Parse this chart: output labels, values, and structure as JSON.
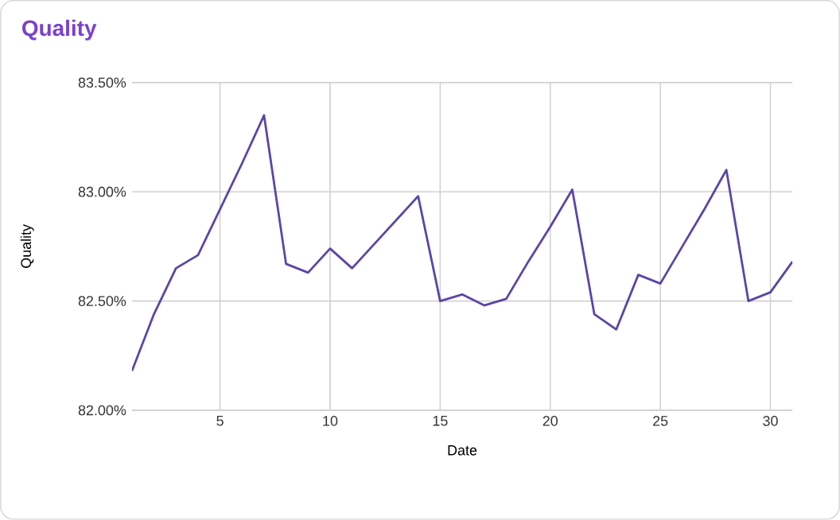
{
  "chart_data": {
    "type": "line",
    "title": "Quality",
    "xlabel": "Date",
    "ylabel": "Quality",
    "x": [
      1,
      2,
      3,
      4,
      5,
      6,
      7,
      8,
      9,
      10,
      11,
      12,
      13,
      14,
      15,
      16,
      17,
      18,
      19,
      20,
      21,
      22,
      23,
      24,
      25,
      26,
      27,
      28,
      29,
      30,
      31
    ],
    "series": [
      {
        "color": "#5b45a8",
        "values": [
          82.18,
          82.44,
          82.65,
          82.71,
          82.92,
          83.13,
          83.35,
          82.67,
          82.63,
          82.74,
          82.65,
          82.76,
          82.87,
          82.98,
          82.5,
          82.53,
          82.48,
          82.51,
          82.68,
          82.84,
          83.01,
          82.44,
          82.37,
          82.62,
          82.58,
          82.75,
          82.92,
          83.1,
          82.5,
          82.54,
          82.68
        ]
      }
    ],
    "xlim": [
      1,
      31
    ],
    "xticks": [
      5,
      10,
      15,
      20,
      25,
      30
    ],
    "ylim": [
      82.0,
      83.5
    ],
    "yticks": [
      {
        "value": 82.0,
        "label": "82.00%"
      },
      {
        "value": 82.5,
        "label": "82.50%"
      },
      {
        "value": 83.0,
        "label": "83.00%"
      },
      {
        "value": 83.5,
        "label": "83.50%"
      }
    ],
    "grid": true,
    "marker": "none",
    "line_style": "solid"
  }
}
